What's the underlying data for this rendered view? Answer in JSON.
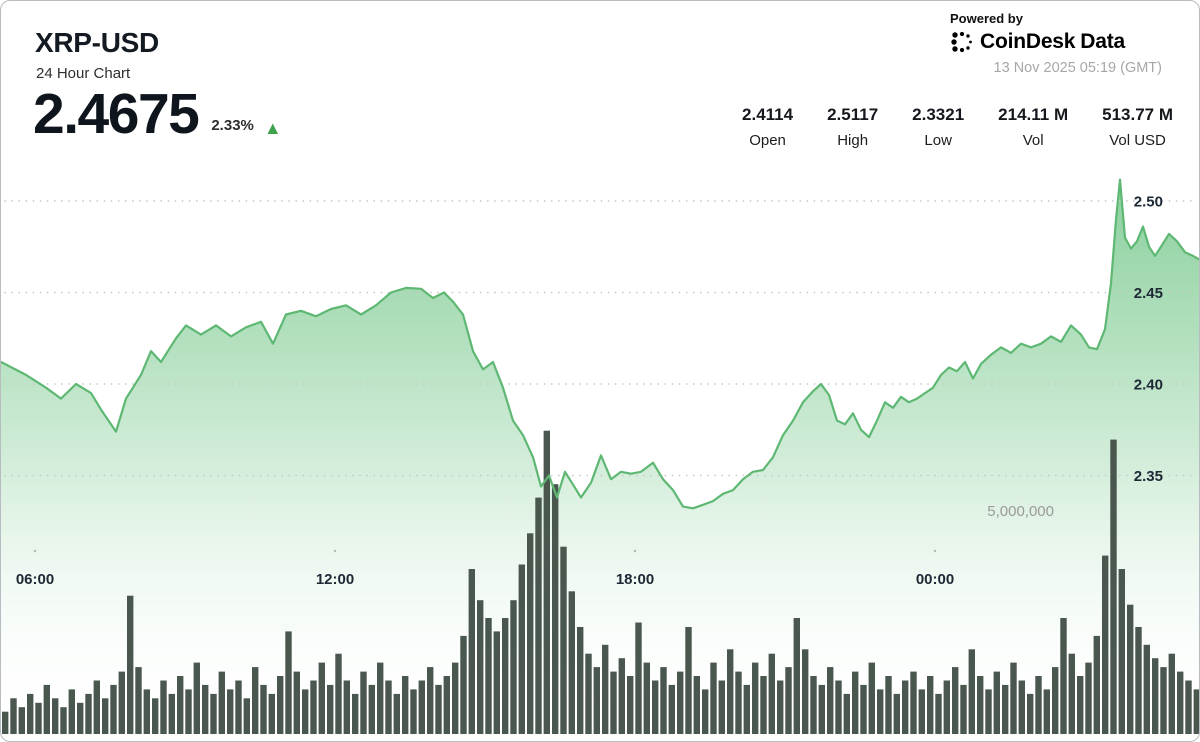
{
  "header": {
    "symbol": "XRP-USD",
    "subtitle": "24 Hour Chart",
    "price": "2.4675",
    "change_percent": "2.33%",
    "change_direction": "up",
    "change_color": "#3fa34d",
    "stats": [
      {
        "value": "2.4114",
        "label": "Open"
      },
      {
        "value": "2.5117",
        "label": "High"
      },
      {
        "value": "2.3321",
        "label": "Low"
      },
      {
        "value": "214.11 M",
        "label": "Vol"
      },
      {
        "value": "513.77 M",
        "label": "Vol USD"
      }
    ],
    "powered_by": "Powered by",
    "brand": {
      "name_primary": "CoinDesk",
      "name_secondary": "Data"
    },
    "timestamp": "13 Nov 2025 05:19 (GMT)"
  },
  "chart_data": {
    "type": "area",
    "title": "XRP-USD 24 Hour Chart",
    "legend": "none",
    "grid": "dotted horizontal",
    "x_axis": {
      "unit": "time of day (GMT), hours since chart start 05:19",
      "tick_labels": [
        "06:00",
        "12:00",
        "18:00",
        "00:00"
      ],
      "tick_hours": [
        0.68,
        6.68,
        12.68,
        18.68
      ],
      "range_hours": [
        0,
        24
      ]
    },
    "y_axis": {
      "unit": "USD",
      "side": "right",
      "tick_values": [
        2.35,
        2.4,
        2.45,
        2.5
      ],
      "tick_labels": [
        "2.35",
        "2.40",
        "2.45",
        "2.50"
      ],
      "visible_range": [
        2.325,
        2.52
      ]
    },
    "volume_axis": {
      "gridline_label": "5,000,000",
      "label_value": 5000000,
      "bar_interval_minutes": 10
    },
    "price_series": {
      "name": "XRP-USD price",
      "color": "#5eb873",
      "area_fill_top": "#7fcb93",
      "points_t_hours_price": [
        [
          0.0,
          2.412
        ],
        [
          0.5,
          2.405
        ],
        [
          0.9,
          2.398
        ],
        [
          1.2,
          2.392
        ],
        [
          1.5,
          2.4
        ],
        [
          1.8,
          2.395
        ],
        [
          2.0,
          2.386
        ],
        [
          2.3,
          2.374
        ],
        [
          2.5,
          2.392
        ],
        [
          2.8,
          2.405
        ],
        [
          3.0,
          2.418
        ],
        [
          3.2,
          2.412
        ],
        [
          3.5,
          2.425
        ],
        [
          3.7,
          2.432
        ],
        [
          4.0,
          2.427
        ],
        [
          4.3,
          2.432
        ],
        [
          4.6,
          2.426
        ],
        [
          4.9,
          2.431
        ],
        [
          5.2,
          2.434
        ],
        [
          5.44,
          2.422
        ],
        [
          5.7,
          2.438
        ],
        [
          6.0,
          2.44
        ],
        [
          6.3,
          2.437
        ],
        [
          6.6,
          2.441
        ],
        [
          6.9,
          2.443
        ],
        [
          7.2,
          2.438
        ],
        [
          7.5,
          2.443
        ],
        [
          7.8,
          2.45
        ],
        [
          8.1,
          2.4525
        ],
        [
          8.4,
          2.452
        ],
        [
          8.64,
          2.447
        ],
        [
          8.86,
          2.45
        ],
        [
          9.04,
          2.445
        ],
        [
          9.24,
          2.438
        ],
        [
          9.44,
          2.418
        ],
        [
          9.64,
          2.408
        ],
        [
          9.84,
          2.412
        ],
        [
          10.04,
          2.398
        ],
        [
          10.24,
          2.38
        ],
        [
          10.44,
          2.372
        ],
        [
          10.64,
          2.36
        ],
        [
          10.8,
          2.344
        ],
        [
          10.96,
          2.35
        ],
        [
          11.12,
          2.338
        ],
        [
          11.28,
          2.352
        ],
        [
          11.44,
          2.345
        ],
        [
          11.6,
          2.338
        ],
        [
          11.8,
          2.346
        ],
        [
          12.0,
          2.361
        ],
        [
          12.2,
          2.348
        ],
        [
          12.4,
          2.352
        ],
        [
          12.6,
          2.351
        ],
        [
          12.8,
          2.352
        ],
        [
          13.04,
          2.357
        ],
        [
          13.24,
          2.348
        ],
        [
          13.44,
          2.342
        ],
        [
          13.64,
          2.333
        ],
        [
          13.84,
          2.3321
        ],
        [
          14.04,
          2.334
        ],
        [
          14.24,
          2.336
        ],
        [
          14.44,
          2.34
        ],
        [
          14.64,
          2.342
        ],
        [
          14.84,
          2.348
        ],
        [
          15.04,
          2.352
        ],
        [
          15.24,
          2.353
        ],
        [
          15.44,
          2.36
        ],
        [
          15.64,
          2.372
        ],
        [
          15.84,
          2.38
        ],
        [
          16.04,
          2.39
        ],
        [
          16.24,
          2.396
        ],
        [
          16.4,
          2.4
        ],
        [
          16.56,
          2.394
        ],
        [
          16.72,
          2.38
        ],
        [
          16.88,
          2.378
        ],
        [
          17.04,
          2.384
        ],
        [
          17.2,
          2.375
        ],
        [
          17.36,
          2.371
        ],
        [
          17.52,
          2.38
        ],
        [
          17.68,
          2.39
        ],
        [
          17.84,
          2.387
        ],
        [
          18.0,
          2.393
        ],
        [
          18.16,
          2.39
        ],
        [
          18.32,
          2.392
        ],
        [
          18.48,
          2.395
        ],
        [
          18.64,
          2.398
        ],
        [
          18.8,
          2.405
        ],
        [
          18.96,
          2.409
        ],
        [
          19.12,
          2.407
        ],
        [
          19.28,
          2.412
        ],
        [
          19.44,
          2.403
        ],
        [
          19.6,
          2.411
        ],
        [
          19.8,
          2.416
        ],
        [
          20.0,
          2.42
        ],
        [
          20.2,
          2.417
        ],
        [
          20.4,
          2.422
        ],
        [
          20.6,
          2.42
        ],
        [
          20.8,
          2.422
        ],
        [
          21.0,
          2.426
        ],
        [
          21.2,
          2.423
        ],
        [
          21.4,
          2.432
        ],
        [
          21.6,
          2.427
        ],
        [
          21.76,
          2.42
        ],
        [
          21.92,
          2.419
        ],
        [
          22.08,
          2.43
        ],
        [
          22.2,
          2.455
        ],
        [
          22.3,
          2.49
        ],
        [
          22.38,
          2.5117
        ],
        [
          22.48,
          2.48
        ],
        [
          22.6,
          2.474
        ],
        [
          22.72,
          2.478
        ],
        [
          22.84,
          2.486
        ],
        [
          22.96,
          2.475
        ],
        [
          23.08,
          2.47
        ],
        [
          23.2,
          2.475
        ],
        [
          23.36,
          2.482
        ],
        [
          23.52,
          2.478
        ],
        [
          23.68,
          2.472
        ],
        [
          23.84,
          2.47
        ],
        [
          24.0,
          2.4675
        ]
      ]
    },
    "volume_series": {
      "name": "Volume",
      "color": "#4a574e",
      "unit": "millions",
      "values_millions": [
        0.5,
        0.8,
        0.6,
        0.9,
        0.7,
        1.1,
        0.8,
        0.6,
        1.0,
        0.7,
        0.9,
        1.2,
        0.8,
        1.1,
        1.4,
        3.1,
        1.5,
        1.0,
        0.8,
        1.2,
        0.9,
        1.3,
        1.0,
        1.6,
        1.1,
        0.9,
        1.4,
        1.0,
        1.2,
        0.8,
        1.5,
        1.1,
        0.9,
        1.3,
        2.3,
        1.4,
        1.0,
        1.2,
        1.6,
        1.1,
        1.8,
        1.2,
        0.9,
        1.4,
        1.1,
        1.6,
        1.2,
        0.9,
        1.3,
        1.0,
        1.2,
        1.5,
        1.1,
        1.3,
        1.6,
        2.2,
        3.7,
        3.0,
        2.6,
        2.3,
        2.6,
        3.0,
        3.8,
        4.5,
        5.3,
        6.8,
        5.6,
        4.2,
        3.2,
        2.4,
        1.8,
        1.5,
        2.0,
        1.4,
        1.7,
        1.3,
        2.5,
        1.6,
        1.2,
        1.5,
        1.1,
        1.4,
        2.4,
        1.3,
        1.0,
        1.6,
        1.2,
        1.9,
        1.4,
        1.1,
        1.6,
        1.3,
        1.8,
        1.2,
        1.5,
        2.6,
        1.9,
        1.3,
        1.1,
        1.5,
        1.2,
        0.9,
        1.4,
        1.1,
        1.6,
        1.0,
        1.3,
        0.9,
        1.2,
        1.4,
        1.0,
        1.3,
        0.9,
        1.2,
        1.5,
        1.1,
        1.9,
        1.3,
        1.0,
        1.4,
        1.1,
        1.6,
        1.2,
        0.9,
        1.3,
        1.0,
        1.5,
        2.6,
        1.8,
        1.3,
        1.6,
        2.2,
        4.0,
        6.6,
        3.7,
        2.9,
        2.4,
        2.0,
        1.7,
        1.5,
        1.8,
        1.4,
        1.2,
        1.0
      ]
    },
    "summary": {
      "open": 2.4114,
      "high": 2.5117,
      "low": 2.3321,
      "close": 2.4675,
      "volume": "214.11 M",
      "volume_usd": "513.77 M"
    }
  }
}
